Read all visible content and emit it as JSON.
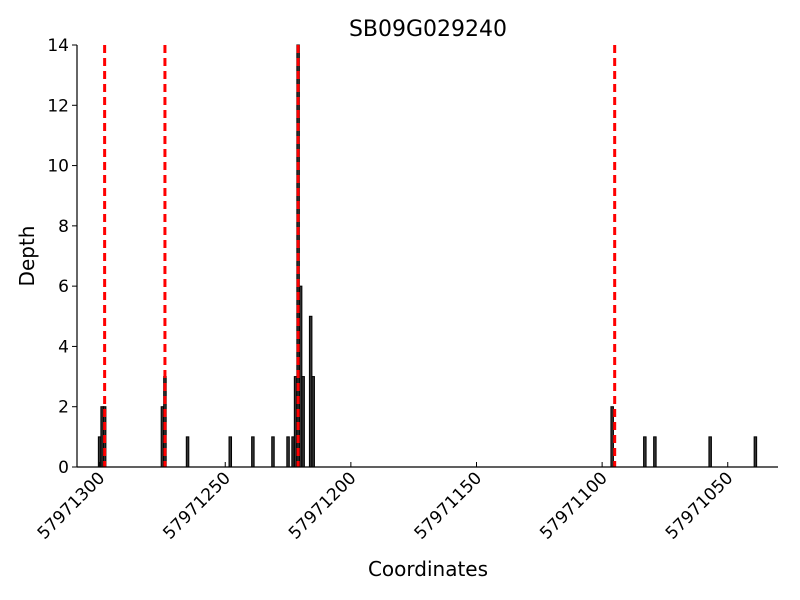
{
  "chart_data": {
    "type": "bar",
    "title": "SB09G029240",
    "x_label": "Coordinates",
    "y_label": "Depth",
    "x": [
      57971300,
      57971299,
      57971298,
      57971275,
      57971274,
      57971265,
      57971248,
      57971239,
      57971231,
      57971225,
      57971223,
      57971222,
      57971221,
      57971220,
      57971219,
      57971216,
      57971215,
      57971096,
      57971083,
      57971079,
      57971057,
      57971039
    ],
    "values": [
      1,
      2,
      2,
      2,
      3,
      1,
      1,
      1,
      1,
      1,
      1,
      3,
      14,
      6,
      3,
      5,
      3,
      2,
      1,
      1,
      1,
      1
    ],
    "color": "#333333",
    "xlim": [
      57971309,
      57971030
    ],
    "xticks": [
      57971300,
      57971250,
      57971200,
      57971150,
      57971100,
      57971050
    ],
    "ylim": [
      0,
      14
    ],
    "yticks": [
      0,
      2,
      4,
      6,
      8,
      10,
      12,
      14
    ],
    "vlines": {
      "values": [
        57971298,
        57971274,
        57971221,
        57971095
      ],
      "color": "#ff0000"
    }
  }
}
